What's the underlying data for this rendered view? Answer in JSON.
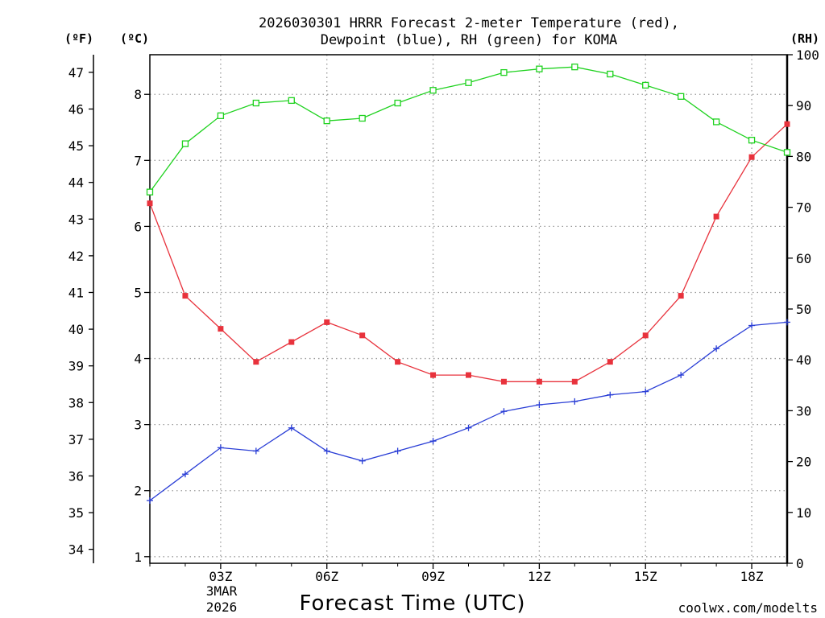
{
  "colors": {
    "temperature": "#e8323c",
    "dewpoint": "#2a3ed6",
    "rh": "#1fd21f",
    "grid": "#9a9a9a",
    "credit": "#cc2222"
  },
  "chart_data": {
    "type": "line",
    "title": "2026030301 HRRR Forecast 2-meter Temperature (red),",
    "subtitle": "Dewpoint (blue), RH (green) for KOMA",
    "xlabel": "Forecast Time (UTC)",
    "x_hours": [
      1,
      2,
      3,
      4,
      5,
      6,
      7,
      8,
      9,
      10,
      11,
      12,
      13,
      14,
      15,
      16,
      17,
      18,
      19
    ],
    "xlim": [
      1,
      19
    ],
    "x_ticks": [
      {
        "hour": 3,
        "label": "03Z"
      },
      {
        "hour": 6,
        "label": "06Z"
      },
      {
        "hour": 9,
        "label": "09Z"
      },
      {
        "hour": 12,
        "label": "12Z"
      },
      {
        "hour": 15,
        "label": "15Z"
      },
      {
        "hour": 18,
        "label": "18Z"
      }
    ],
    "date_label_line1": "3MAR",
    "date_label_line2": "2026",
    "left_c_unit": "(ºC)",
    "left_f_unit": "(ºF)",
    "right_unit": "(RH)",
    "ylim_c": [
      0.9,
      8.6
    ],
    "yticks_c": [
      1,
      2,
      3,
      4,
      5,
      6,
      7,
      8
    ],
    "yticks_f": [
      34,
      35,
      36,
      37,
      38,
      39,
      40,
      41,
      42,
      43,
      44,
      45,
      46,
      47
    ],
    "ylim_rh": [
      0,
      100
    ],
    "yticks_rh": [
      0,
      10,
      20,
      30,
      40,
      50,
      60,
      70,
      80,
      90,
      100
    ],
    "grid": true,
    "series": [
      {
        "name": "Temperature",
        "axis": "C",
        "marker": "filled-square",
        "values": [
          6.35,
          4.95,
          4.45,
          3.95,
          4.25,
          4.55,
          4.35,
          3.95,
          3.75,
          3.75,
          3.65,
          3.65,
          3.65,
          3.95,
          4.35,
          4.95,
          6.15,
          7.05,
          7.55
        ]
      },
      {
        "name": "Dewpoint",
        "axis": "C",
        "marker": "plus",
        "values": [
          1.85,
          2.25,
          2.65,
          2.6,
          2.95,
          2.6,
          2.45,
          2.6,
          2.75,
          2.95,
          3.2,
          3.3,
          3.35,
          3.45,
          3.5,
          3.75,
          4.15,
          4.5,
          4.55
        ]
      },
      {
        "name": "Relative Humidity",
        "axis": "RH",
        "marker": "open-square",
        "values": [
          73,
          82.5,
          88,
          90.5,
          91,
          87,
          87.5,
          90.5,
          93,
          94.5,
          96.5,
          97.2,
          97.6,
          96.2,
          94,
          91.8,
          86.8,
          83.2,
          80.8
        ]
      }
    ],
    "credit": "coolwx.com/modelts"
  }
}
